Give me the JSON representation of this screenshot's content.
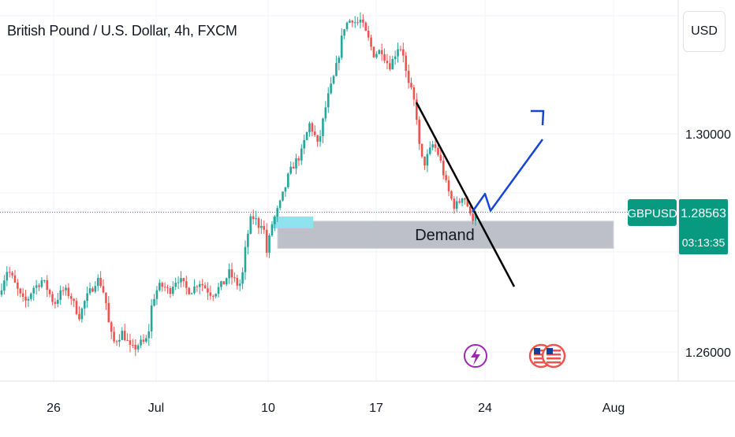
{
  "header": {
    "title": "British Pound / U.S. Dollar, 4h, FXCM",
    "currency_button": "USD"
  },
  "price_axis": {
    "ticks": [
      "1.30000",
      "1.26000"
    ],
    "tick_values": [
      1.3,
      1.26
    ]
  },
  "time_axis": {
    "ticks": [
      "26",
      "Jul",
      "10",
      "17",
      "24",
      "Aug"
    ]
  },
  "last_price": {
    "symbol": "GBPUSD",
    "price": "1.28563",
    "countdown": "03:13:35",
    "value": 1.28563
  },
  "annotations": {
    "demand_label": "Demand"
  },
  "colors": {
    "up": "#26a69a",
    "down": "#ef5350",
    "zone": "#b2b5be",
    "arrow": "#1744d6",
    "trendline": "#000000",
    "tag": "#089981",
    "highlight": "#8fe3ee"
  },
  "event_icons": [
    "lightning-event-icon",
    "us-flag-event-icon"
  ],
  "chart_data": {
    "type": "candlestick",
    "title": "British Pound / U.S. Dollar, 4h, FXCM",
    "ylim": [
      1.2555,
      1.3285
    ],
    "y_ticks": [
      1.26,
      1.3
    ],
    "x_ticks": [
      "26",
      "Jul",
      "10",
      "17",
      "24",
      "Aug"
    ],
    "series": [
      {
        "name": "GBPUSD",
        "last": 1.28563
      }
    ],
    "demand_zone": {
      "label": "Demand",
      "price_top": 1.284,
      "price_bottom": 1.279
    },
    "projection": [
      1.2857,
      1.289,
      1.2859,
      1.3025
    ],
    "waypoints": [
      [
        1.2705,
        1.273,
        1.2752,
        1.2738,
        1.272,
        1.2703,
        1.269,
        1.27,
        1.2718,
        1.2722,
        1.2732,
        1.2722,
        1.2705,
        1.2688,
        1.2702,
        1.2713
      ],
      [
        1.271,
        1.27,
        1.268,
        1.2665,
        1.269,
        1.2705,
        1.2718,
        1.2735,
        1.2724,
        1.27,
        1.264,
        1.2618,
        1.2626,
        1.2636,
        1.2622,
        1.2604
      ],
      [
        1.2608,
        1.2616,
        1.2617,
        1.2625,
        1.2692,
        1.2712,
        1.2722,
        1.2718,
        1.271,
        1.2726,
        1.2736,
        1.2727,
        1.2716,
        1.2712,
        1.2719,
        1.273
      ],
      [
        1.2722,
        1.2714,
        1.2706,
        1.2712,
        1.272,
        1.2728,
        1.2746,
        1.2735,
        1.2724,
        1.2726,
        1.2794,
        1.284,
        1.2848,
        1.2832,
        1.284,
        1.2778
      ],
      [
        1.2832,
        1.285,
        1.287,
        1.2895,
        1.2922,
        1.294,
        1.2952,
        1.2963,
        1.2992,
        1.3018,
        1.3002,
        1.2976,
        1.3018,
        1.3058,
        1.3085,
        1.3112
      ],
      [
        1.315,
        1.3195,
        1.3205,
        1.3212,
        1.3202,
        1.3208,
        1.3188,
        1.317,
        1.3146,
        1.315,
        1.3154,
        1.3133,
        1.3125,
        1.3145,
        1.3164,
        1.3148
      ],
      [
        1.3093,
        1.3076,
        1.3045,
        1.2958,
        1.2946,
        1.2964,
        1.2981,
        1.2968,
        1.2943,
        1.291,
        1.2886,
        1.2868,
        1.2872,
        1.289,
        1.2872,
        1.284
      ],
      [
        1.2857
      ]
    ]
  }
}
